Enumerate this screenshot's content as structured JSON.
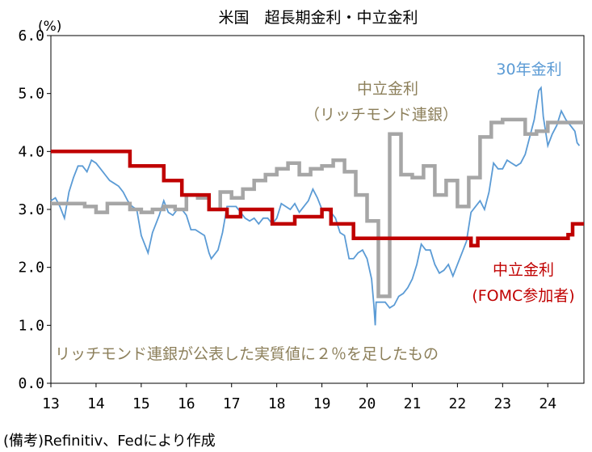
{
  "chart_data": {
    "type": "line",
    "title": "米国　超長期金利・中立金利",
    "unit": "(%)",
    "ylim": [
      0,
      6
    ],
    "yticks": [
      "0.0",
      "1.0",
      "2.0",
      "3.0",
      "4.0",
      "5.0",
      "6.0"
    ],
    "xlim": [
      2013,
      2024.8
    ],
    "xticks": [
      "13",
      "14",
      "15",
      "16",
      "17",
      "18",
      "19",
      "20",
      "21",
      "22",
      "23",
      "24"
    ],
    "grid": false,
    "series": [
      {
        "name": "30年金利",
        "color": "#5b9bd5",
        "kind": "line",
        "points": [
          [
            2013.0,
            3.15
          ],
          [
            2013.1,
            3.2
          ],
          [
            2013.2,
            3.05
          ],
          [
            2013.3,
            2.85
          ],
          [
            2013.4,
            3.3
          ],
          [
            2013.5,
            3.55
          ],
          [
            2013.6,
            3.75
          ],
          [
            2013.7,
            3.75
          ],
          [
            2013.8,
            3.65
          ],
          [
            2013.9,
            3.85
          ],
          [
            2014.0,
            3.8
          ],
          [
            2014.1,
            3.7
          ],
          [
            2014.2,
            3.6
          ],
          [
            2014.3,
            3.5
          ],
          [
            2014.4,
            3.45
          ],
          [
            2014.5,
            3.4
          ],
          [
            2014.6,
            3.3
          ],
          [
            2014.7,
            3.15
          ],
          [
            2014.8,
            3.05
          ],
          [
            2014.9,
            3.0
          ],
          [
            2015.0,
            2.55
          ],
          [
            2015.1,
            2.35
          ],
          [
            2015.15,
            2.25
          ],
          [
            2015.25,
            2.6
          ],
          [
            2015.4,
            2.9
          ],
          [
            2015.5,
            3.15
          ],
          [
            2015.6,
            2.95
          ],
          [
            2015.7,
            2.9
          ],
          [
            2015.8,
            3.0
          ],
          [
            2015.9,
            3.0
          ],
          [
            2016.0,
            2.9
          ],
          [
            2016.1,
            2.65
          ],
          [
            2016.2,
            2.65
          ],
          [
            2016.3,
            2.6
          ],
          [
            2016.4,
            2.55
          ],
          [
            2016.5,
            2.25
          ],
          [
            2016.55,
            2.15
          ],
          [
            2016.7,
            2.3
          ],
          [
            2016.8,
            2.6
          ],
          [
            2016.9,
            3.05
          ],
          [
            2017.0,
            3.05
          ],
          [
            2017.1,
            3.05
          ],
          [
            2017.2,
            2.95
          ],
          [
            2017.3,
            2.85
          ],
          [
            2017.4,
            2.8
          ],
          [
            2017.5,
            2.85
          ],
          [
            2017.6,
            2.75
          ],
          [
            2017.7,
            2.85
          ],
          [
            2017.8,
            2.85
          ],
          [
            2017.9,
            2.75
          ],
          [
            2018.0,
            2.85
          ],
          [
            2018.1,
            3.1
          ],
          [
            2018.2,
            3.05
          ],
          [
            2018.3,
            3.0
          ],
          [
            2018.4,
            3.1
          ],
          [
            2018.5,
            2.95
          ],
          [
            2018.6,
            3.05
          ],
          [
            2018.7,
            3.15
          ],
          [
            2018.8,
            3.35
          ],
          [
            2018.9,
            3.2
          ],
          [
            2019.0,
            3.0
          ],
          [
            2019.1,
            3.0
          ],
          [
            2019.2,
            2.95
          ],
          [
            2019.3,
            2.85
          ],
          [
            2019.4,
            2.6
          ],
          [
            2019.5,
            2.55
          ],
          [
            2019.6,
            2.15
          ],
          [
            2019.7,
            2.15
          ],
          [
            2019.8,
            2.25
          ],
          [
            2019.9,
            2.3
          ],
          [
            2020.0,
            2.15
          ],
          [
            2020.1,
            1.8
          ],
          [
            2020.15,
            1.35
          ],
          [
            2020.18,
            1.0
          ],
          [
            2020.2,
            1.4
          ],
          [
            2020.3,
            1.4
          ],
          [
            2020.4,
            1.4
          ],
          [
            2020.5,
            1.3
          ],
          [
            2020.6,
            1.35
          ],
          [
            2020.7,
            1.5
          ],
          [
            2020.8,
            1.55
          ],
          [
            2020.9,
            1.65
          ],
          [
            2021.0,
            1.8
          ],
          [
            2021.1,
            2.05
          ],
          [
            2021.2,
            2.4
          ],
          [
            2021.3,
            2.3
          ],
          [
            2021.4,
            2.3
          ],
          [
            2021.5,
            2.05
          ],
          [
            2021.6,
            1.9
          ],
          [
            2021.7,
            1.95
          ],
          [
            2021.8,
            2.05
          ],
          [
            2021.9,
            1.85
          ],
          [
            2022.0,
            2.05
          ],
          [
            2022.1,
            2.25
          ],
          [
            2022.2,
            2.45
          ],
          [
            2022.3,
            2.95
          ],
          [
            2022.4,
            3.05
          ],
          [
            2022.5,
            3.15
          ],
          [
            2022.6,
            3.0
          ],
          [
            2022.7,
            3.3
          ],
          [
            2022.8,
            3.8
          ],
          [
            2022.9,
            3.7
          ],
          [
            2023.0,
            3.7
          ],
          [
            2023.1,
            3.85
          ],
          [
            2023.2,
            3.8
          ],
          [
            2023.3,
            3.75
          ],
          [
            2023.4,
            3.8
          ],
          [
            2023.5,
            3.95
          ],
          [
            2023.6,
            4.25
          ],
          [
            2023.7,
            4.55
          ],
          [
            2023.8,
            5.05
          ],
          [
            2023.85,
            5.1
          ],
          [
            2023.9,
            4.6
          ],
          [
            2024.0,
            4.1
          ],
          [
            2024.1,
            4.3
          ],
          [
            2024.2,
            4.45
          ],
          [
            2024.3,
            4.7
          ],
          [
            2024.4,
            4.55
          ],
          [
            2024.5,
            4.45
          ],
          [
            2024.6,
            4.35
          ],
          [
            2024.65,
            4.15
          ],
          [
            2024.7,
            4.1
          ]
        ]
      },
      {
        "name": "中立金利\n（リッチモンド連銀）",
        "color": "#a6a6a6",
        "kind": "step",
        "points": [
          [
            2013.0,
            3.1
          ],
          [
            2013.25,
            3.1
          ],
          [
            2013.5,
            3.1
          ],
          [
            2013.75,
            3.05
          ],
          [
            2014.0,
            2.95
          ],
          [
            2014.25,
            3.1
          ],
          [
            2014.5,
            3.1
          ],
          [
            2014.75,
            3.0
          ],
          [
            2015.0,
            2.95
          ],
          [
            2015.25,
            3.0
          ],
          [
            2015.5,
            3.05
          ],
          [
            2015.75,
            3.0
          ],
          [
            2016.0,
            3.25
          ],
          [
            2016.25,
            3.2
          ],
          [
            2016.5,
            3.0
          ],
          [
            2016.75,
            3.3
          ],
          [
            2017.0,
            3.2
          ],
          [
            2017.25,
            3.35
          ],
          [
            2017.5,
            3.5
          ],
          [
            2017.75,
            3.6
          ],
          [
            2018.0,
            3.7
          ],
          [
            2018.25,
            3.8
          ],
          [
            2018.5,
            3.6
          ],
          [
            2018.75,
            3.7
          ],
          [
            2019.0,
            3.75
          ],
          [
            2019.25,
            3.85
          ],
          [
            2019.5,
            3.65
          ],
          [
            2019.75,
            3.25
          ],
          [
            2020.0,
            2.8
          ],
          [
            2020.25,
            1.5
          ],
          [
            2020.5,
            4.3
          ],
          [
            2020.75,
            3.6
          ],
          [
            2021.0,
            3.55
          ],
          [
            2021.25,
            3.75
          ],
          [
            2021.5,
            3.25
          ],
          [
            2021.75,
            3.5
          ],
          [
            2022.0,
            3.05
          ],
          [
            2022.25,
            3.55
          ],
          [
            2022.5,
            4.25
          ],
          [
            2022.75,
            4.5
          ],
          [
            2023.0,
            4.55
          ],
          [
            2023.25,
            4.55
          ],
          [
            2023.5,
            4.3
          ],
          [
            2023.75,
            4.35
          ],
          [
            2024.0,
            4.5
          ],
          [
            2024.25,
            4.5
          ],
          [
            2024.5,
            4.5
          ],
          [
            2024.8,
            4.5
          ]
        ]
      },
      {
        "name": "中立金利\n(FOMC参加者)",
        "color": "#c00000",
        "kind": "step",
        "points": [
          [
            2013.0,
            4.0
          ],
          [
            2014.75,
            3.75
          ],
          [
            2015.5,
            3.5
          ],
          [
            2015.9,
            3.25
          ],
          [
            2016.5,
            3.0
          ],
          [
            2016.9,
            2.875
          ],
          [
            2017.2,
            3.0
          ],
          [
            2017.9,
            2.75
          ],
          [
            2018.4,
            2.875
          ],
          [
            2019.0,
            3.0
          ],
          [
            2019.2,
            2.75
          ],
          [
            2019.7,
            2.5
          ],
          [
            2022.3,
            2.375
          ],
          [
            2022.45,
            2.5
          ],
          [
            2024.45,
            2.563
          ],
          [
            2024.55,
            2.75
          ],
          [
            2024.8,
            2.75
          ]
        ]
      }
    ],
    "annotations": {
      "gray_label": [
        "中立金利",
        "（リッチモンド連銀）"
      ],
      "red_label": [
        "中立金利",
        "(FOMC参加者)"
      ],
      "blue_label": "30年金利",
      "note": "リッチモンド連銀が公表した実質値に２％を足したもの"
    },
    "source": "(備考)Refinitiv、Fedにより作成"
  }
}
